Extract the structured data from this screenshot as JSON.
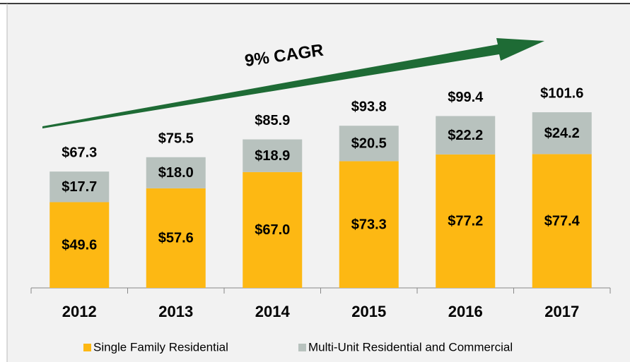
{
  "chart_data": {
    "type": "stacked_bar",
    "annotation": "9% CAGR",
    "categories": [
      "2012",
      "2013",
      "2014",
      "2015",
      "2016",
      "2017"
    ],
    "series": [
      {
        "name": "Single Family Residential",
        "color": "#fdb813",
        "values": [
          49.6,
          57.6,
          67.0,
          73.3,
          77.2,
          77.4
        ],
        "value_labels": [
          "$49.6",
          "$57.6",
          "$67.0",
          "$73.3",
          "$77.2",
          "$77.4"
        ]
      },
      {
        "name": "Multi-Unit Residential and Commercial",
        "color": "#b8c2be",
        "values": [
          17.7,
          18.0,
          18.9,
          20.5,
          22.2,
          24.2
        ],
        "value_labels": [
          "$17.7",
          "$18.0",
          "$18.9",
          "$20.5",
          "$22.2",
          "$24.2"
        ]
      }
    ],
    "totals": [
      67.3,
      75.5,
      85.9,
      93.8,
      99.4,
      101.6
    ],
    "total_labels": [
      "$67.3",
      "$75.5",
      "$85.9",
      "$93.8",
      "$99.4",
      "$101.6"
    ],
    "ylim": [
      0,
      120
    ]
  }
}
